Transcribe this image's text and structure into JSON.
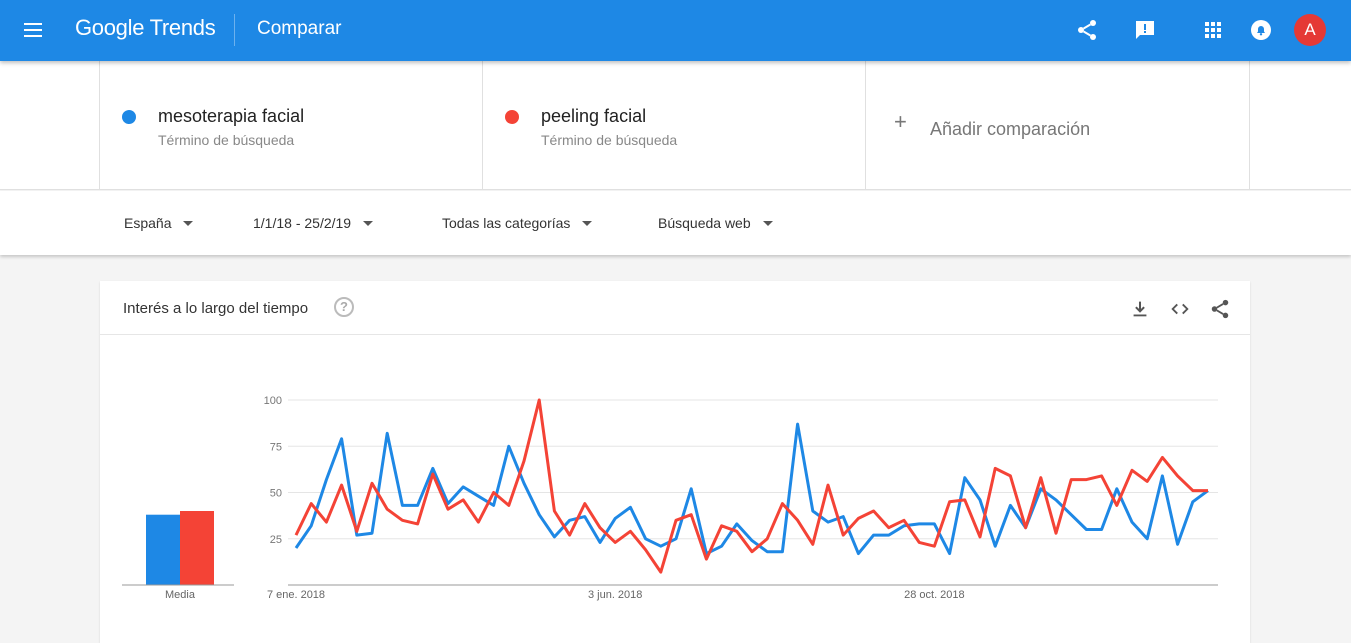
{
  "topbar": {
    "logo_google": "Google",
    "logo_trends": "Trends",
    "title": "Comparar",
    "avatar_letter": "A",
    "icons": [
      "menu-icon",
      "share-icon",
      "feedback-icon",
      "apps-icon",
      "notifications-icon"
    ]
  },
  "terms": [
    {
      "name": "mesoterapia facial",
      "type": "Término de búsqueda",
      "color": "#1e88e5"
    },
    {
      "name": "peeling facial",
      "type": "Término de búsqueda",
      "color": "#f44336"
    }
  ],
  "add_comparison": {
    "icon": "+",
    "label": "Añadir comparación"
  },
  "filters": {
    "region": "España",
    "date": "1/1/18 - 25/2/19",
    "category": "Todas las categorías",
    "search_type": "Búsqueda web"
  },
  "card": {
    "title": "Interés a lo largo del tiempo",
    "help": "?",
    "tools": [
      "download-icon",
      "embed-icon",
      "share-icon"
    ]
  },
  "chart_data": {
    "type": "line",
    "y_ticks": [
      "100",
      "75",
      "50",
      "25"
    ],
    "ylim": [
      0,
      100
    ],
    "x_tick_labels": [
      {
        "label": "7 ene. 2018",
        "index": 0
      },
      {
        "label": "3 jun. 2018",
        "index": 21
      },
      {
        "label": "28 oct. 2018",
        "index": 42
      }
    ],
    "grid": true,
    "average": {
      "label": "Media",
      "values": [
        38,
        40
      ]
    },
    "series": [
      {
        "name": "mesoterapia facial",
        "color": "#1e88e5",
        "values": [
          20,
          32,
          57,
          79,
          27,
          28,
          82,
          43,
          43,
          63,
          44,
          53,
          48,
          43,
          75,
          55,
          38,
          26,
          35,
          37,
          23,
          36,
          42,
          25,
          21,
          25,
          52,
          17,
          21,
          33,
          24,
          18,
          18,
          87,
          40,
          34,
          37,
          17,
          27,
          27,
          32,
          33,
          33,
          17,
          58,
          46,
          21,
          43,
          31,
          52,
          46,
          38,
          30,
          30,
          52,
          34,
          25,
          59,
          22,
          45,
          51
        ]
      },
      {
        "name": "peeling facial",
        "color": "#f44336",
        "values": [
          27,
          44,
          34,
          54,
          29,
          55,
          41,
          35,
          33,
          60,
          41,
          46,
          34,
          50,
          43,
          67,
          100,
          40,
          27,
          44,
          31,
          23,
          29,
          19,
          7,
          35,
          38,
          14,
          32,
          29,
          18,
          25,
          44,
          35,
          22,
          54,
          27,
          36,
          40,
          31,
          35,
          23,
          21,
          45,
          46,
          26,
          63,
          59,
          31,
          58,
          28,
          57,
          57,
          59,
          43,
          62,
          56,
          69,
          59,
          51,
          51
        ]
      }
    ]
  }
}
